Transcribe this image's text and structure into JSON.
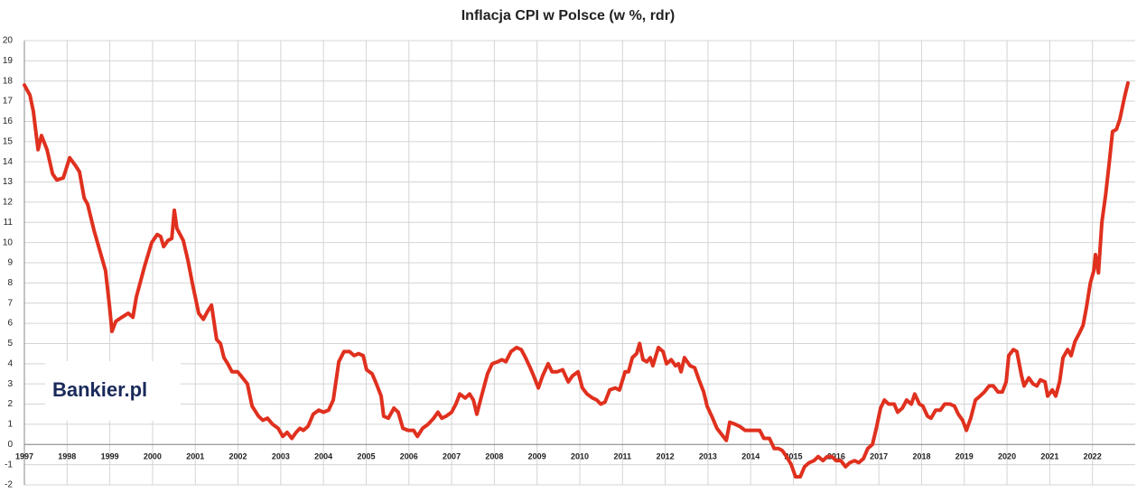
{
  "chart_data": {
    "type": "line",
    "title": "Inflacja CPI w Polsce (w %, rdr)",
    "watermark": "Bankier.pl",
    "x": [
      1997.0,
      1997.13,
      1997.21,
      1997.32,
      1997.4,
      1997.53,
      1997.66,
      1997.76,
      1997.91,
      1998.06,
      1998.2,
      1998.29,
      1998.4,
      1998.48,
      1998.63,
      1998.82,
      1998.9,
      1998.99,
      1999.05,
      1999.14,
      1999.28,
      1999.43,
      1999.54,
      1999.62,
      1999.81,
      1999.98,
      2000.11,
      2000.19,
      2000.26,
      2000.36,
      2000.45,
      2000.51,
      2000.57,
      2000.72,
      2000.83,
      2000.93,
      2001.08,
      2001.19,
      2001.29,
      2001.38,
      2001.5,
      2001.59,
      2001.67,
      2001.76,
      2001.86,
      2001.99,
      2002.07,
      2002.22,
      2002.33,
      2002.48,
      2002.58,
      2002.69,
      2002.81,
      2002.94,
      2003.05,
      2003.15,
      2003.26,
      2003.36,
      2003.45,
      2003.53,
      2003.64,
      2003.76,
      2003.89,
      2004.0,
      2004.12,
      2004.23,
      2004.36,
      2004.48,
      2004.61,
      2004.72,
      2004.82,
      2004.93,
      2005.01,
      2005.14,
      2005.24,
      2005.35,
      2005.41,
      2005.52,
      2005.65,
      2005.75,
      2005.86,
      2005.98,
      2006.11,
      2006.2,
      2006.32,
      2006.45,
      2006.58,
      2006.68,
      2006.77,
      2006.87,
      2007.0,
      2007.1,
      2007.19,
      2007.32,
      2007.42,
      2007.51,
      2007.59,
      2007.7,
      2007.84,
      2007.95,
      2008.08,
      2008.18,
      2008.27,
      2008.39,
      2008.52,
      2008.63,
      2008.73,
      2008.84,
      2008.92,
      2009.03,
      2009.13,
      2009.26,
      2009.35,
      2009.47,
      2009.6,
      2009.73,
      2009.83,
      2009.96,
      2010.06,
      2010.17,
      2010.3,
      2010.4,
      2010.49,
      2010.59,
      2010.7,
      2010.83,
      2010.93,
      2011.06,
      2011.14,
      2011.23,
      2011.33,
      2011.4,
      2011.48,
      2011.57,
      2011.65,
      2011.71,
      2011.84,
      2011.95,
      2012.03,
      2012.14,
      2012.24,
      2012.31,
      2012.37,
      2012.45,
      2012.58,
      2012.69,
      2012.79,
      2012.9,
      2012.98,
      2013.11,
      2013.21,
      2013.32,
      2013.43,
      2013.51,
      2013.64,
      2013.74,
      2013.87,
      2013.98,
      2014.1,
      2014.21,
      2014.31,
      2014.44,
      2014.55,
      2014.65,
      2014.74,
      2014.84,
      2014.95,
      2015.05,
      2015.16,
      2015.26,
      2015.37,
      2015.48,
      2015.58,
      2015.69,
      2015.79,
      2015.9,
      2016.0,
      2016.11,
      2016.22,
      2016.32,
      2016.43,
      2016.53,
      2016.64,
      2016.74,
      2016.85,
      2016.94,
      2017.04,
      2017.13,
      2017.23,
      2017.36,
      2017.44,
      2017.55,
      2017.65,
      2017.76,
      2017.84,
      2017.95,
      2018.03,
      2018.14,
      2018.22,
      2018.33,
      2018.44,
      2018.54,
      2018.67,
      2018.77,
      2018.86,
      2018.96,
      2019.05,
      2019.15,
      2019.26,
      2019.37,
      2019.47,
      2019.58,
      2019.68,
      2019.79,
      2019.89,
      2019.98,
      2020.04,
      2020.15,
      2020.23,
      2020.34,
      2020.4,
      2020.51,
      2020.61,
      2020.7,
      2020.78,
      2020.89,
      2020.95,
      2021.06,
      2021.14,
      2021.23,
      2021.31,
      2021.42,
      2021.5,
      2021.59,
      2021.69,
      2021.78,
      2021.86,
      2021.95,
      2022.03,
      2022.07,
      2022.14,
      2022.22,
      2022.31,
      2022.39,
      2022.47,
      2022.56,
      2022.64,
      2022.75,
      2022.83
    ],
    "series": [
      {
        "color": "#e0301e",
        "values": [
          17.8,
          17.3,
          16.5,
          14.6,
          15.3,
          14.6,
          13.4,
          13.1,
          13.2,
          14.2,
          13.8,
          13.5,
          12.2,
          11.9,
          10.6,
          9.2,
          8.6,
          6.9,
          5.6,
          6.1,
          6.3,
          6.5,
          6.3,
          7.3,
          8.8,
          10.0,
          10.4,
          10.3,
          9.8,
          10.1,
          10.2,
          11.6,
          10.7,
          10.1,
          9.1,
          8.0,
          6.5,
          6.2,
          6.6,
          6.9,
          5.2,
          5.0,
          4.3,
          4.0,
          3.6,
          3.6,
          3.4,
          3.0,
          1.9,
          1.4,
          1.2,
          1.3,
          1.0,
          0.8,
          0.4,
          0.6,
          0.3,
          0.6,
          0.8,
          0.7,
          0.9,
          1.5,
          1.7,
          1.6,
          1.7,
          2.2,
          4.1,
          4.6,
          4.6,
          4.4,
          4.5,
          4.4,
          3.7,
          3.5,
          3.0,
          2.4,
          1.4,
          1.3,
          1.8,
          1.6,
          0.8,
          0.7,
          0.7,
          0.4,
          0.8,
          1.0,
          1.3,
          1.6,
          1.3,
          1.4,
          1.6,
          2.0,
          2.5,
          2.3,
          2.5,
          2.2,
          1.5,
          2.4,
          3.5,
          4.0,
          4.1,
          4.2,
          4.1,
          4.6,
          4.8,
          4.7,
          4.3,
          3.8,
          3.4,
          2.8,
          3.4,
          4.0,
          3.6,
          3.6,
          3.7,
          3.1,
          3.4,
          3.6,
          2.8,
          2.5,
          2.3,
          2.2,
          2.0,
          2.1,
          2.7,
          2.8,
          2.7,
          3.6,
          3.6,
          4.3,
          4.5,
          5.0,
          4.2,
          4.1,
          4.3,
          3.9,
          4.8,
          4.6,
          4.0,
          4.2,
          3.9,
          4.0,
          3.6,
          4.3,
          3.9,
          3.8,
          3.2,
          2.6,
          1.9,
          1.3,
          0.8,
          0.5,
          0.2,
          1.1,
          1.0,
          0.9,
          0.7,
          0.7,
          0.7,
          0.7,
          0.3,
          0.3,
          -0.2,
          -0.2,
          -0.3,
          -0.6,
          -1.0,
          -1.6,
          -1.6,
          -1.1,
          -0.9,
          -0.8,
          -0.6,
          -0.8,
          -0.6,
          -0.6,
          -0.8,
          -0.8,
          -1.1,
          -0.9,
          -0.8,
          -0.9,
          -0.7,
          -0.2,
          0.0,
          0.8,
          1.8,
          2.2,
          2.0,
          2.0,
          1.6,
          1.8,
          2.2,
          2.0,
          2.5,
          2.0,
          1.9,
          1.4,
          1.3,
          1.7,
          1.7,
          2.0,
          2.0,
          1.9,
          1.5,
          1.2,
          0.7,
          1.3,
          2.2,
          2.4,
          2.6,
          2.9,
          2.9,
          2.6,
          2.6,
          3.1,
          4.4,
          4.7,
          4.6,
          3.4,
          2.9,
          3.3,
          3.0,
          2.9,
          3.2,
          3.1,
          2.4,
          2.7,
          2.4,
          3.1,
          4.3,
          4.7,
          4.4,
          5.1,
          5.5,
          5.9,
          6.8,
          8.0,
          8.6,
          9.4,
          8.5,
          11.0,
          12.4,
          13.9,
          15.5,
          15.6,
          16.1,
          17.2,
          17.9
        ]
      }
    ],
    "xlim": [
      1997,
      2023
    ],
    "xticks": [
      1997,
      1998,
      1999,
      2000,
      2001,
      2002,
      2003,
      2004,
      2005,
      2006,
      2007,
      2008,
      2009,
      2010,
      2011,
      2012,
      2013,
      2014,
      2015,
      2016,
      2017,
      2018,
      2019,
      2020,
      2021,
      2022
    ],
    "ylim": [
      -2,
      20
    ],
    "yticks": [
      -2,
      -1,
      0,
      1,
      2,
      3,
      4,
      5,
      6,
      7,
      8,
      9,
      10,
      11,
      12,
      13,
      14,
      15,
      16,
      17,
      18,
      19,
      20
    ],
    "grid": true
  }
}
